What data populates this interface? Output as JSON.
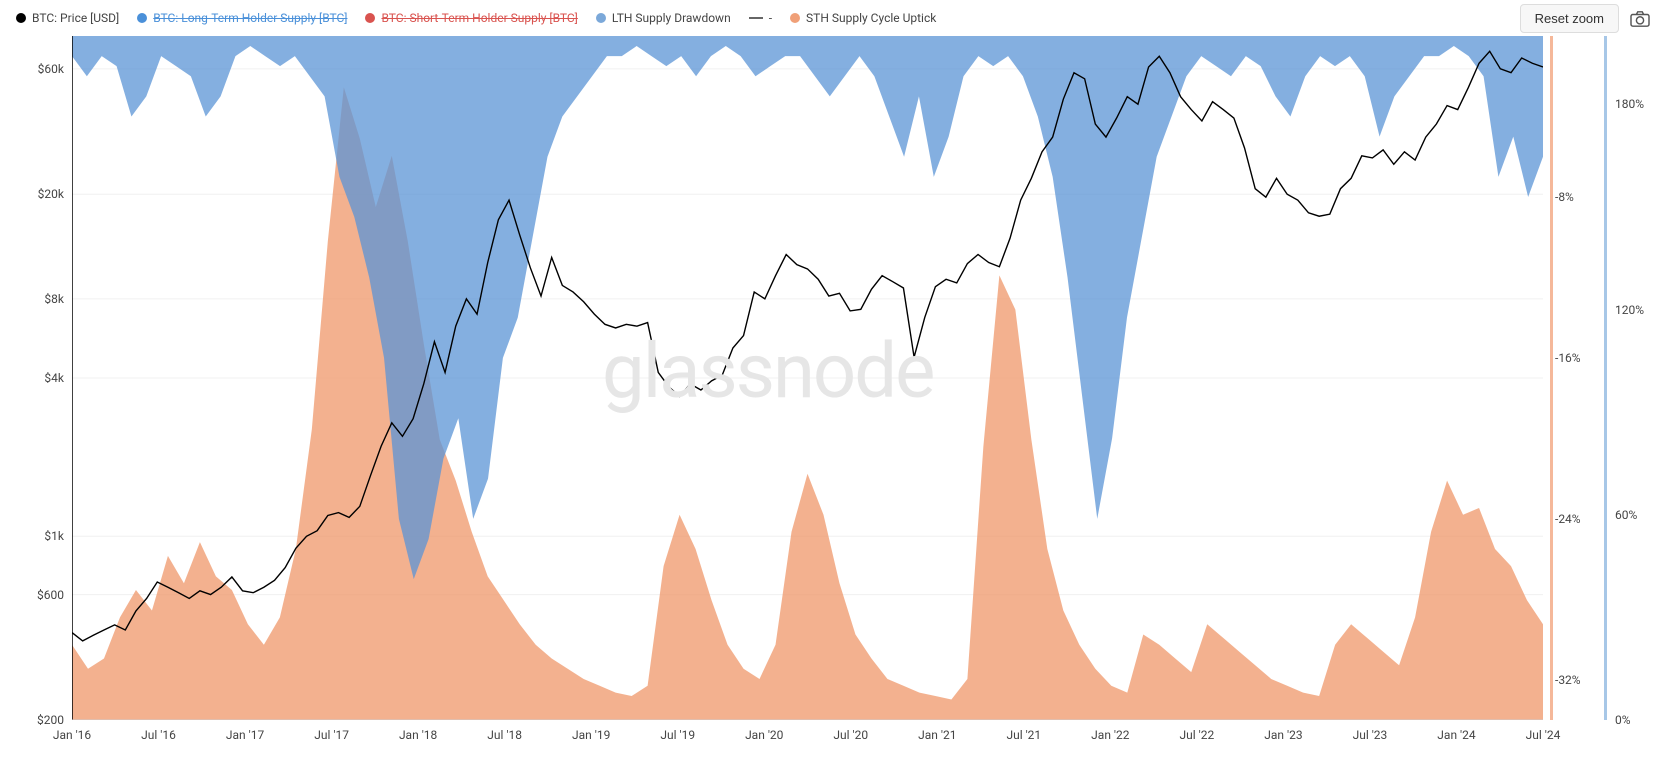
{
  "legend": [
    {
      "color": "#000000",
      "label": "BTC: Price [USD]",
      "type": "dot"
    },
    {
      "color": "#4a90d9",
      "label": "BTC: Long-Term Holder Supply [BTC]",
      "type": "dot-strike"
    },
    {
      "color": "#d9534f",
      "label": "BTC: Short-Term Holder Supply [BTC]",
      "type": "dot-strike"
    },
    {
      "color": "#7ba8d9",
      "label": "LTH Supply Drawdown",
      "type": "dot"
    },
    {
      "color": "#666666",
      "label": "-",
      "type": "dash"
    },
    {
      "color": "#f0a078",
      "label": "STH Supply Cycle Uptick",
      "type": "dot"
    }
  ],
  "controls": {
    "reset_zoom": "Reset zoom"
  },
  "watermark": "glassnode",
  "chart": {
    "type": "multi-axis-area-line",
    "background_color": "#ffffff",
    "grid_color": "#f0f0f0",
    "x_axis": {
      "ticks": [
        "Jan '16",
        "Jul '16",
        "Jan '17",
        "Jul '17",
        "Jan '18",
        "Jul '18",
        "Jan '19",
        "Jul '19",
        "Jan '20",
        "Jul '20",
        "Jan '21",
        "Jul '21",
        "Jan '22",
        "Jul '22",
        "Jan '23",
        "Jul '23",
        "Jan '24",
        "Jul '24"
      ]
    },
    "y_left": {
      "scale": "log",
      "ticks": [
        {
          "label": "$200",
          "value": 200
        },
        {
          "label": "$600",
          "value": 600
        },
        {
          "label": "$1k",
          "value": 1000
        },
        {
          "label": "$4k",
          "value": 4000
        },
        {
          "label": "$8k",
          "value": 8000
        },
        {
          "label": "$20k",
          "value": 20000
        },
        {
          "label": "$60k",
          "value": 60000
        }
      ],
      "min": 200,
      "max": 80000
    },
    "y_right_1": {
      "ticks": [
        {
          "label": "-8%",
          "value": -8
        },
        {
          "label": "-16%",
          "value": -16
        },
        {
          "label": "-24%",
          "value": -24
        },
        {
          "label": "-32%",
          "value": -32
        }
      ],
      "min": -34,
      "max": 0,
      "bar_color": "#a7c7e7"
    },
    "y_right_2": {
      "ticks": [
        {
          "label": "0%",
          "value": 0
        },
        {
          "label": "60%",
          "value": 60
        },
        {
          "label": "120%",
          "value": 120
        },
        {
          "label": "180%",
          "value": 180
        }
      ],
      "min": 0,
      "max": 200,
      "bar_color": "#f5b89a"
    },
    "series": {
      "price": {
        "color": "#000000",
        "width": 1.4,
        "data": [
          430,
          400,
          420,
          440,
          460,
          440,
          520,
          580,
          670,
          640,
          610,
          580,
          620,
          600,
          640,
          700,
          620,
          610,
          640,
          680,
          760,
          900,
          1000,
          1050,
          1200,
          1230,
          1180,
          1300,
          1700,
          2200,
          2700,
          2400,
          2800,
          3800,
          5500,
          4200,
          6300,
          8000,
          7000,
          11000,
          16000,
          19000,
          14000,
          10500,
          8200,
          11500,
          9000,
          8500,
          7800,
          7000,
          6400,
          6200,
          6400,
          6300,
          6500,
          4200,
          3700,
          3400,
          3800,
          3600,
          3900,
          4100,
          5200,
          5800,
          8500,
          8000,
          9800,
          11800,
          10800,
          10400,
          9500,
          8200,
          8400,
          7200,
          7300,
          8700,
          9800,
          9300,
          8800,
          4800,
          6800,
          8900,
          9500,
          9200,
          10900,
          11800,
          11000,
          10600,
          13600,
          19000,
          23000,
          29000,
          33000,
          46000,
          58000,
          55000,
          37000,
          33000,
          39000,
          47000,
          44000,
          61000,
          67000,
          58000,
          47000,
          42000,
          38000,
          45000,
          42000,
          39000,
          30000,
          21000,
          19500,
          23000,
          20000,
          19000,
          17000,
          16500,
          16800,
          21000,
          23000,
          28000,
          27500,
          29500,
          26000,
          29000,
          27000,
          33000,
          37000,
          43500,
          42000,
          51000,
          63000,
          70000,
          60000,
          58000,
          66000,
          63000,
          61000
        ]
      },
      "lth_drawdown": {
        "color": "#5b94d6",
        "opacity": 0.75,
        "data": [
          -1,
          -2,
          -1,
          -1.5,
          -4,
          -3,
          -1,
          -1.5,
          -2,
          -4,
          -3,
          -1,
          -0.5,
          -1,
          -1.5,
          -1,
          -2,
          -3,
          -7,
          -9,
          -12,
          -16,
          -24,
          -27,
          -25,
          -21,
          -19,
          -24,
          -22,
          -16,
          -14,
          -10,
          -6,
          -4,
          -3,
          -2,
          -1,
          -1,
          -0.5,
          -1,
          -1.5,
          -1,
          -2,
          -1,
          -0.5,
          -1,
          -2,
          -1.5,
          -1,
          -1,
          -2,
          -3,
          -2,
          -1,
          -2,
          -4,
          -6,
          -3,
          -7,
          -5,
          -2,
          -1,
          -1.5,
          -1,
          -2,
          -4,
          -7,
          -12,
          -18,
          -24,
          -20,
          -14,
          -10,
          -6,
          -4,
          -2,
          -1,
          -1.5,
          -2,
          -1,
          -1.5,
          -3,
          -4,
          -2,
          -1,
          -1.5,
          -1,
          -2,
          -5,
          -3,
          -2,
          -1,
          -1,
          -0.5,
          -1,
          -2,
          -7,
          -5,
          -8,
          -6
        ]
      },
      "sth_uptick": {
        "color": "#ef9b6f",
        "opacity": 0.78,
        "data": [
          22,
          15,
          18,
          30,
          38,
          32,
          48,
          40,
          52,
          42,
          38,
          28,
          22,
          30,
          50,
          85,
          140,
          185,
          170,
          150,
          165,
          140,
          110,
          82,
          70,
          55,
          42,
          35,
          28,
          22,
          18,
          15,
          12,
          10,
          8,
          7,
          10,
          45,
          60,
          50,
          35,
          22,
          15,
          12,
          22,
          55,
          72,
          60,
          40,
          25,
          18,
          12,
          10,
          8,
          7,
          6,
          12,
          80,
          130,
          120,
          82,
          50,
          32,
          22,
          15,
          10,
          8,
          25,
          22,
          18,
          14,
          28,
          24,
          20,
          16,
          12,
          10,
          8,
          7,
          22,
          28,
          24,
          20,
          16,
          30,
          55,
          70,
          60,
          62,
          50,
          45,
          35,
          28
        ]
      }
    }
  }
}
